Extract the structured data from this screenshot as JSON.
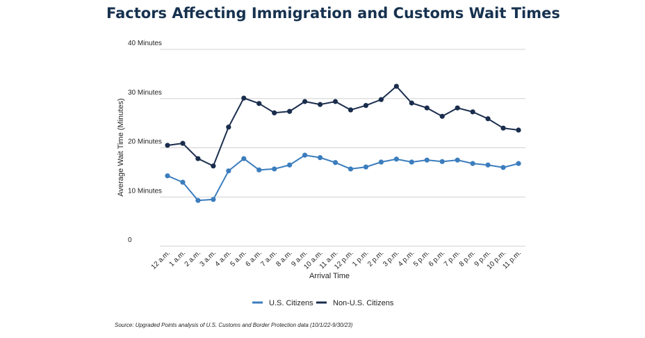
{
  "chart_data": {
    "type": "line",
    "title": "Factors Affecting Immigration and Customs Wait Times",
    "y_label": "Average Wait Time (Minutes)",
    "x_label": "Arrival Time",
    "source": "Source: Upgraded Points analysis of U.S. Customs and Border Protection data (10/1/22-9/30/23)",
    "categories": [
      "12 a.m.",
      "1 a.m.",
      "2 a.m.",
      "3 a.m.",
      "4 a.m.",
      "5 a.m.",
      "6 a.m.",
      "7 a.m.",
      "8 a.m.",
      "9 a.m.",
      "10 a.m.",
      "11 a.m.",
      "12 p.m.",
      "1 p.m.",
      "2 p.m.",
      "3 p.m.",
      "4 p.m.",
      "5 p.m.",
      "6 p.m.",
      "7 p.m.",
      "8 p.m.",
      "9 p.m.",
      "10 p.m.",
      "11 p.m."
    ],
    "series": [
      {
        "name": "U.S. Citizens",
        "color": "#3b7dbd",
        "values": [
          14.3,
          13.0,
          9.3,
          9.5,
          15.3,
          17.8,
          15.5,
          15.7,
          16.5,
          18.5,
          18.0,
          17.0,
          15.7,
          16.1,
          17.1,
          17.7,
          17.1,
          17.5,
          17.2,
          17.5,
          16.8,
          16.5,
          16.0,
          16.8
        ]
      },
      {
        "name": "Non-U.S. Citizens",
        "color": "#1a2d4d",
        "values": [
          20.5,
          20.9,
          17.8,
          16.3,
          24.2,
          30.1,
          29.0,
          27.1,
          27.4,
          29.4,
          28.8,
          29.4,
          27.7,
          28.6,
          29.8,
          32.5,
          29.1,
          28.1,
          26.4,
          28.1,
          27.3,
          25.9,
          24.0,
          23.6
        ]
      }
    ],
    "ylim": [
      0,
      40
    ],
    "yticks": [
      0,
      {
        "value": 10,
        "label": "10 Minutes"
      },
      {
        "value": 20,
        "label": "20 Minutes"
      },
      {
        "value": 30,
        "label": "30 Minutes"
      },
      {
        "value": 40,
        "label": "40 Minutes"
      }
    ],
    "grid": true
  }
}
